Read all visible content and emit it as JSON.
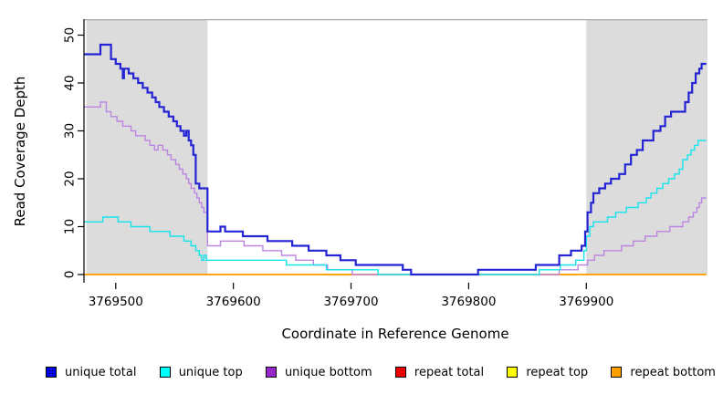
{
  "chart_data": {
    "type": "line",
    "subtype": "step",
    "title": "",
    "xlabel": "Coordinate in Reference Genome",
    "ylabel": "Read Coverage Depth",
    "x_domain": [
      3769473,
      3770003
    ],
    "ylim": [
      0,
      50
    ],
    "x_ticks": [
      3769500,
      3769600,
      3769700,
      3769800,
      3769900
    ],
    "y_ticks": [
      0,
      10,
      20,
      30,
      40,
      50
    ],
    "grid": false,
    "legend_position": "bottom",
    "background_color": "#ffffff",
    "shade_color": "#dcdcdc",
    "top_border_color": "#a8a8a8",
    "shaded_regions": [
      {
        "x0": 3769475,
        "x1": 3769578
      },
      {
        "x0": 3769900,
        "x1": 3770003
      }
    ],
    "series": [
      {
        "name": "repeat total",
        "color": "#ee0000",
        "legend_color": "#ee0000",
        "width": 1.2,
        "points": [
          [
            3769473,
            0
          ],
          [
            3770002,
            0
          ]
        ]
      },
      {
        "name": "repeat top",
        "color": "#ffff00",
        "legend_color": "#ffff00",
        "width": 1.2,
        "points": [
          [
            3769473,
            0
          ],
          [
            3770002,
            0
          ]
        ]
      },
      {
        "name": "repeat bottom",
        "color": "#ff9f00",
        "legend_color": "#ff9f00",
        "width": 1.8,
        "points": [
          [
            3769473,
            0
          ],
          [
            3770002,
            0
          ]
        ]
      },
      {
        "name": "unique bottom",
        "color": "#bd85e2",
        "legend_color": "#9926cc",
        "width": 1.4,
        "points": [
          [
            3769473,
            35
          ],
          [
            3769487,
            36
          ],
          [
            3769492,
            34
          ],
          [
            3769496,
            33
          ],
          [
            3769501,
            32
          ],
          [
            3769506,
            31
          ],
          [
            3769513,
            30
          ],
          [
            3769517,
            29
          ],
          [
            3769525,
            28
          ],
          [
            3769529,
            27
          ],
          [
            3769533,
            26
          ],
          [
            3769536,
            27
          ],
          [
            3769540,
            26
          ],
          [
            3769544,
            25
          ],
          [
            3769547,
            24
          ],
          [
            3769551,
            23
          ],
          [
            3769554,
            22
          ],
          [
            3769557,
            21
          ],
          [
            3769560,
            20
          ],
          [
            3769562,
            19
          ],
          [
            3769564,
            18
          ],
          [
            3769567,
            17
          ],
          [
            3769569,
            16
          ],
          [
            3769571,
            15
          ],
          [
            3769573,
            14
          ],
          [
            3769575,
            13
          ],
          [
            3769578,
            6
          ],
          [
            3769589,
            7
          ],
          [
            3769609,
            6
          ],
          [
            3769625,
            5
          ],
          [
            3769641,
            4
          ],
          [
            3769653,
            3
          ],
          [
            3769668,
            2
          ],
          [
            3769680,
            1
          ],
          [
            3769701,
            0
          ],
          [
            3769877,
            1
          ],
          [
            3769893,
            2
          ],
          [
            3769901,
            3
          ],
          [
            3769907,
            4
          ],
          [
            3769915,
            5
          ],
          [
            3769930,
            6
          ],
          [
            3769940,
            7
          ],
          [
            3769950,
            8
          ],
          [
            3769960,
            9
          ],
          [
            3769971,
            10
          ],
          [
            3769982,
            11
          ],
          [
            3769987,
            12
          ],
          [
            3769991,
            13
          ],
          [
            3769994,
            14
          ],
          [
            3769996,
            15
          ],
          [
            3769998,
            16
          ],
          [
            3770002,
            16
          ]
        ]
      },
      {
        "name": "unique top",
        "color": "#16e3ec",
        "legend_color": "#00ffff",
        "width": 1.4,
        "points": [
          [
            3769473,
            11
          ],
          [
            3769489,
            12
          ],
          [
            3769502,
            11
          ],
          [
            3769513,
            10
          ],
          [
            3769529,
            9
          ],
          [
            3769546,
            8
          ],
          [
            3769558,
            7
          ],
          [
            3769564,
            6
          ],
          [
            3769568,
            5
          ],
          [
            3769571,
            4
          ],
          [
            3769573,
            3
          ],
          [
            3769575,
            4
          ],
          [
            3769577,
            3
          ],
          [
            3769645,
            2
          ],
          [
            3769679,
            1
          ],
          [
            3769723,
            0
          ],
          [
            3769860,
            1
          ],
          [
            3769878,
            2
          ],
          [
            3769891,
            3
          ],
          [
            3769898,
            5
          ],
          [
            3769900,
            8
          ],
          [
            3769903,
            10
          ],
          [
            3769906,
            11
          ],
          [
            3769918,
            12
          ],
          [
            3769925,
            13
          ],
          [
            3769934,
            14
          ],
          [
            3769944,
            15
          ],
          [
            3769951,
            16
          ],
          [
            3769955,
            17
          ],
          [
            3769960,
            18
          ],
          [
            3769965,
            19
          ],
          [
            3769970,
            20
          ],
          [
            3769975,
            21
          ],
          [
            3769979,
            22
          ],
          [
            3769982,
            24
          ],
          [
            3769986,
            25
          ],
          [
            3769989,
            26
          ],
          [
            3769992,
            27
          ],
          [
            3769995,
            28
          ],
          [
            3770002,
            28
          ]
        ]
      },
      {
        "name": "unique total",
        "color": "#2424d4",
        "legend_color": "#0000e6",
        "width": 2.2,
        "points": [
          [
            3769473,
            46
          ],
          [
            3769487,
            48
          ],
          [
            3769496,
            45
          ],
          [
            3769500,
            44
          ],
          [
            3769504,
            43
          ],
          [
            3769506,
            41
          ],
          [
            3769507,
            43
          ],
          [
            3769511,
            42
          ],
          [
            3769515,
            41
          ],
          [
            3769519,
            40
          ],
          [
            3769523,
            39
          ],
          [
            3769527,
            38
          ],
          [
            3769531,
            37
          ],
          [
            3769534,
            36
          ],
          [
            3769537,
            35
          ],
          [
            3769541,
            34
          ],
          [
            3769545,
            33
          ],
          [
            3769549,
            32
          ],
          [
            3769552,
            31
          ],
          [
            3769555,
            30
          ],
          [
            3769558,
            29
          ],
          [
            3769560,
            30
          ],
          [
            3769562,
            28
          ],
          [
            3769564,
            27
          ],
          [
            3769566,
            25
          ],
          [
            3769568,
            19
          ],
          [
            3769571,
            18
          ],
          [
            3769578,
            9
          ],
          [
            3769589,
            10
          ],
          [
            3769593,
            9
          ],
          [
            3769608,
            8
          ],
          [
            3769629,
            7
          ],
          [
            3769650,
            6
          ],
          [
            3769664,
            5
          ],
          [
            3769679,
            4
          ],
          [
            3769691,
            3
          ],
          [
            3769704,
            2
          ],
          [
            3769744,
            1
          ],
          [
            3769751,
            0
          ],
          [
            3769808,
            1
          ],
          [
            3769857,
            2
          ],
          [
            3769877,
            4
          ],
          [
            3769887,
            5
          ],
          [
            3769896,
            6
          ],
          [
            3769899,
            9
          ],
          [
            3769901,
            13
          ],
          [
            3769904,
            15
          ],
          [
            3769906,
            17
          ],
          [
            3769911,
            18
          ],
          [
            3769916,
            19
          ],
          [
            3769921,
            20
          ],
          [
            3769928,
            21
          ],
          [
            3769933,
            23
          ],
          [
            3769938,
            25
          ],
          [
            3769943,
            26
          ],
          [
            3769948,
            28
          ],
          [
            3769957,
            30
          ],
          [
            3769963,
            31
          ],
          [
            3769967,
            33
          ],
          [
            3769972,
            34
          ],
          [
            3769984,
            36
          ],
          [
            3769987,
            38
          ],
          [
            3769990,
            40
          ],
          [
            3769993,
            42
          ],
          [
            3769996,
            43
          ],
          [
            3769998,
            44
          ],
          [
            3770002,
            44
          ]
        ]
      }
    ],
    "legend_order": [
      "unique total",
      "unique top",
      "unique bottom",
      "repeat total",
      "repeat top",
      "repeat bottom"
    ]
  }
}
